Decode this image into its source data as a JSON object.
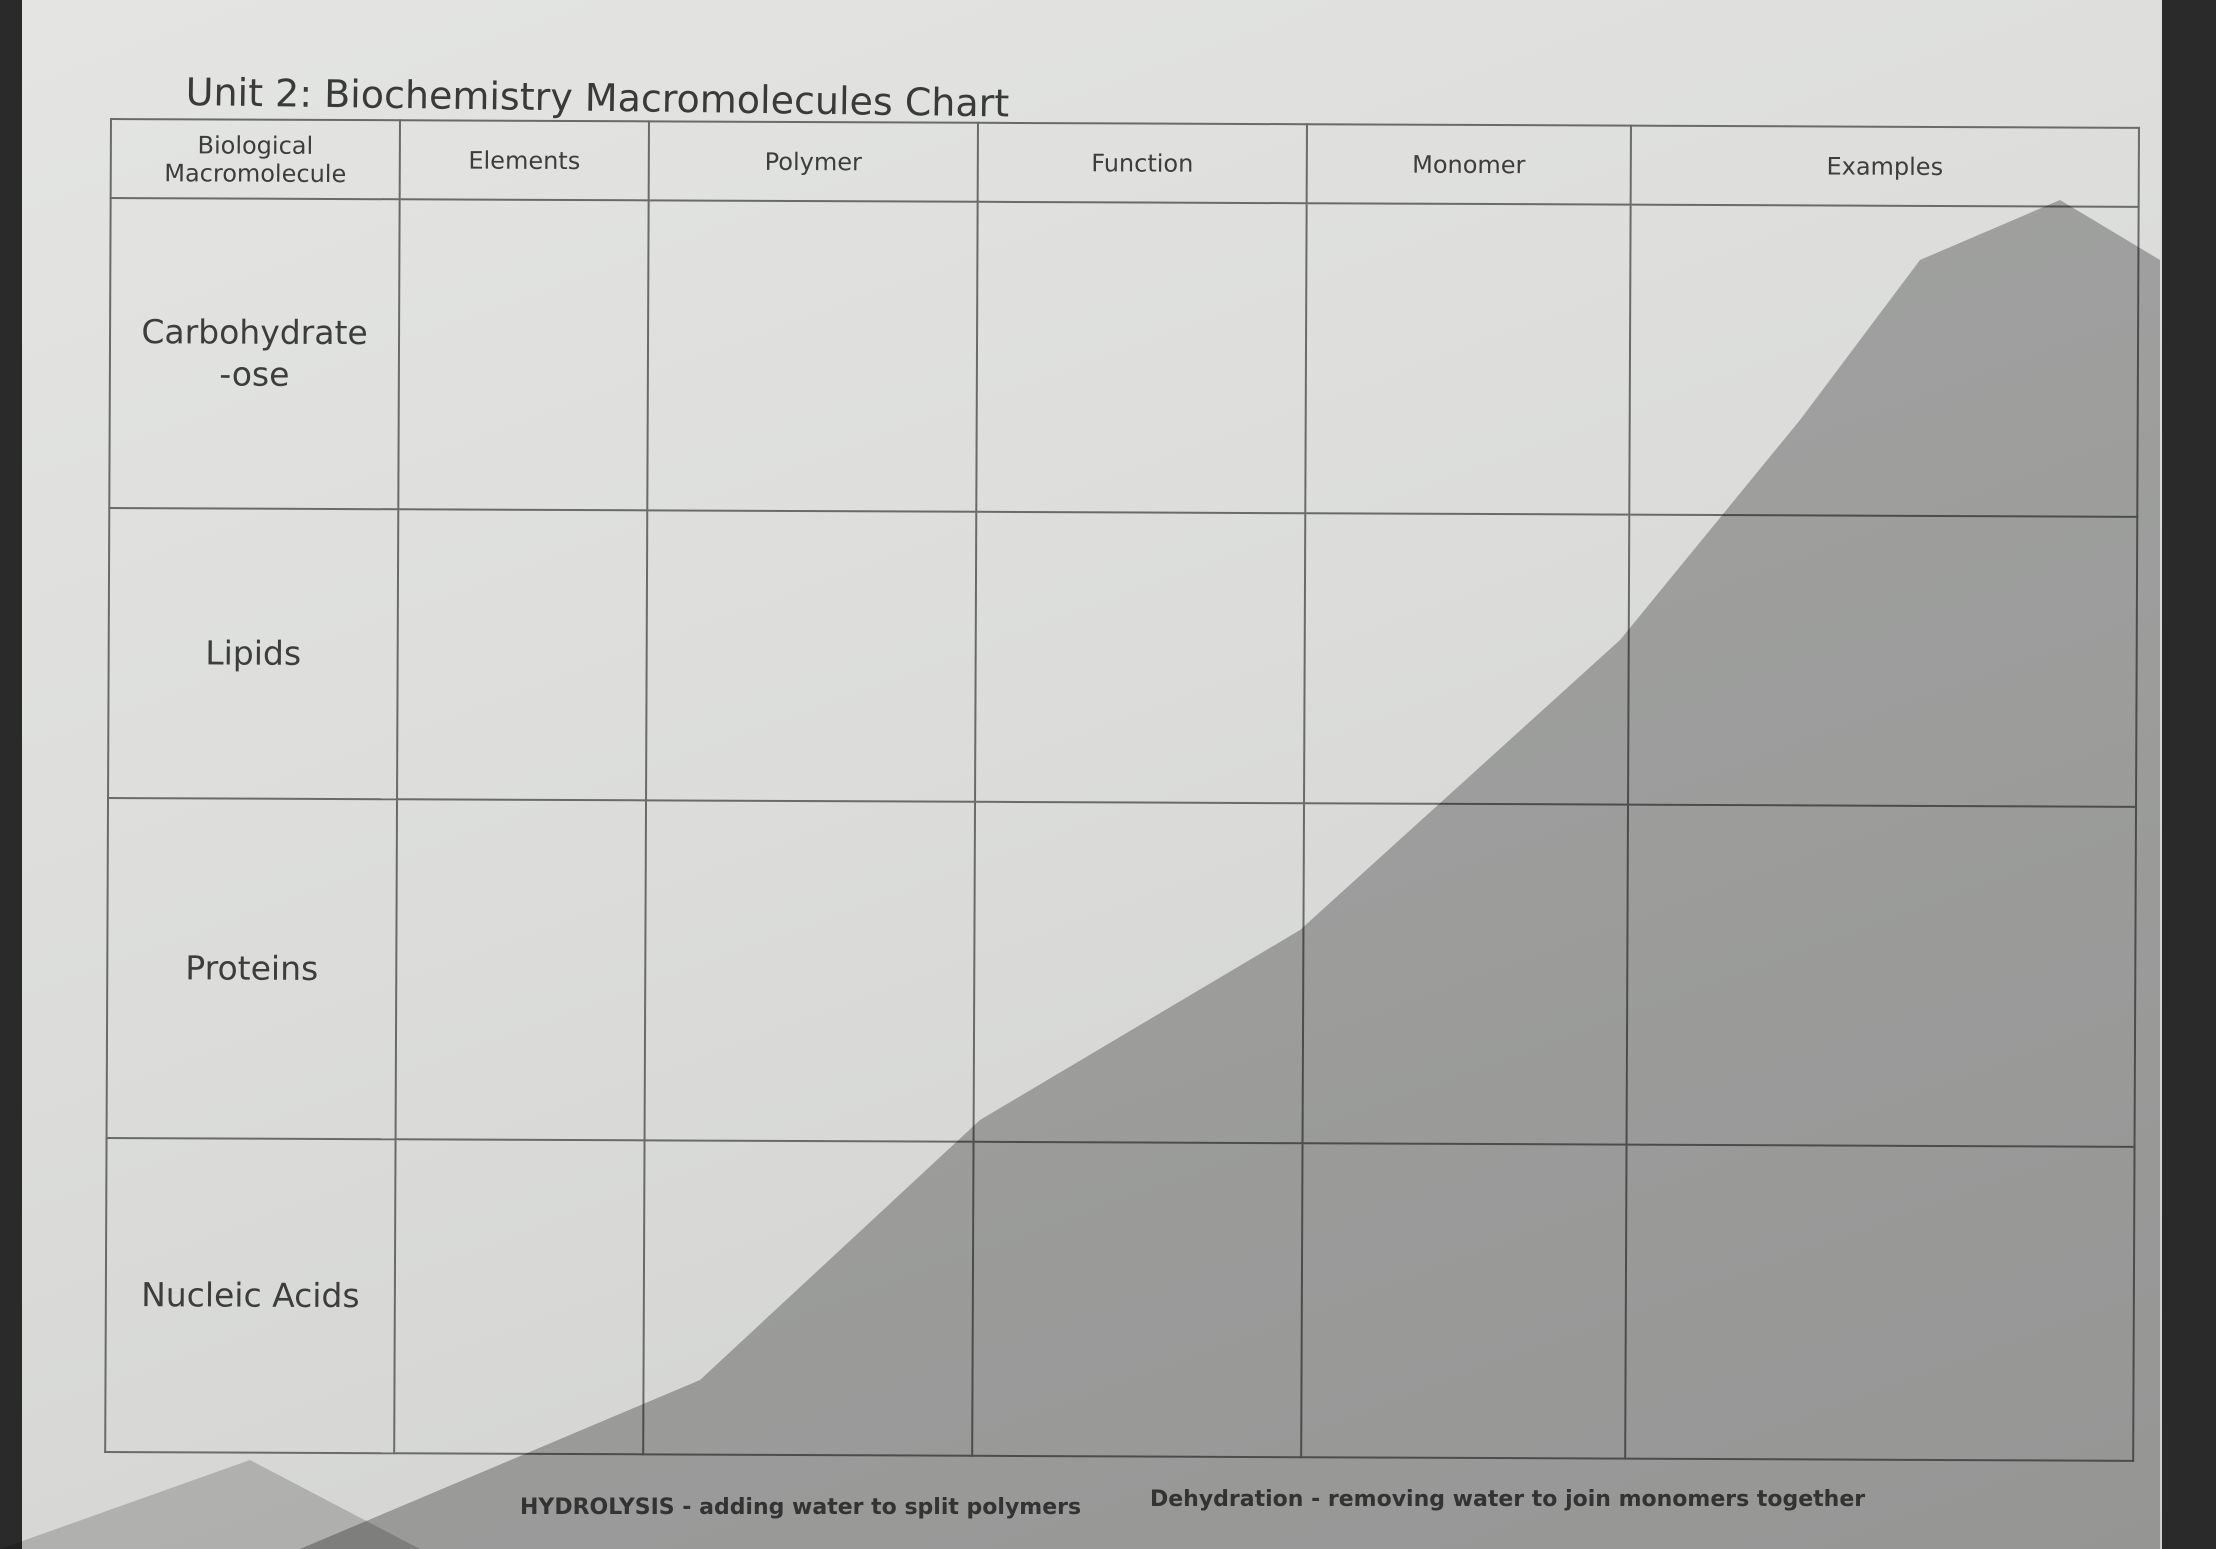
{
  "title": "Unit 2: Biochemistry Macromolecules Chart",
  "table": {
    "headers": [
      "Biological Macromolecule",
      "Elements",
      "Polymer",
      "Function",
      "Monomer",
      "Examples"
    ],
    "rows": [
      {
        "label": "Carbohydrate",
        "sublabel": "-ose"
      },
      {
        "label": "Lipids"
      },
      {
        "label": "Proteins"
      },
      {
        "label": "Nucleic Acids"
      }
    ]
  },
  "footer": {
    "hydrolysis": "HYDROLYSIS - adding water to split polymers",
    "dehydration": "Dehydration - removing water to join monomers together"
  }
}
